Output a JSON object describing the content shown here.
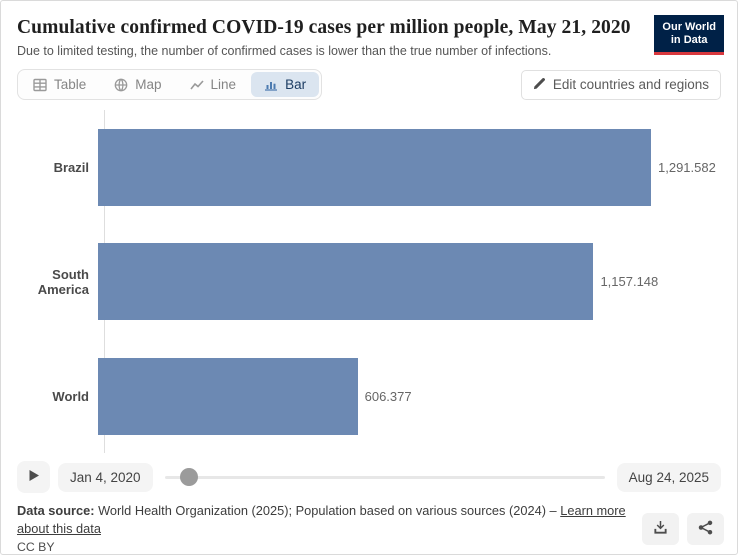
{
  "header": {
    "title": "Cumulative confirmed COVID-19 cases per million people, May 21, 2020",
    "subtitle": "Due to limited testing, the number of confirmed cases is lower than the true number of infections.",
    "logo_line1": "Our World",
    "logo_line2": "in Data"
  },
  "tabs": [
    {
      "label": "Table",
      "icon": "table-icon",
      "active": false
    },
    {
      "label": "Map",
      "icon": "globe-icon",
      "active": false
    },
    {
      "label": "Line",
      "icon": "line-chart-icon",
      "active": false
    },
    {
      "label": "Bar",
      "icon": "bar-chart-icon",
      "active": true
    }
  ],
  "edit_button": {
    "label": "Edit countries and regions"
  },
  "chart_data": {
    "type": "bar",
    "orientation": "horizontal",
    "title": "Cumulative confirmed COVID-19 cases per million people, May 21, 2020",
    "date_shown": "May 21, 2020",
    "categories": [
      "Brazil",
      "South America",
      "World"
    ],
    "values": [
      1291.582,
      1157.148,
      606.377
    ],
    "value_labels": [
      "1,291.582",
      "1,157.148",
      "606.377"
    ],
    "bar_color": "#6c89b3",
    "xlabel": "",
    "ylabel": "",
    "grid": false,
    "legend": false
  },
  "timeline": {
    "start_label": "Jan 4, 2020",
    "end_label": "Aug 24, 2025",
    "handle_pct": 6.4,
    "play_icon": "play-icon"
  },
  "footer": {
    "source_bold": "Data source:",
    "source_text": " World Health Organization (2025); Population based on various sources (2024) – ",
    "link_text": "Learn more about this data",
    "license": "CC BY"
  },
  "colors": {
    "bar": "#6c89b3",
    "active_tab_bg": "#dbe5f0",
    "active_tab_text": "#1d3d63",
    "logo_bg": "#002147",
    "logo_stripe": "#d8383e"
  }
}
